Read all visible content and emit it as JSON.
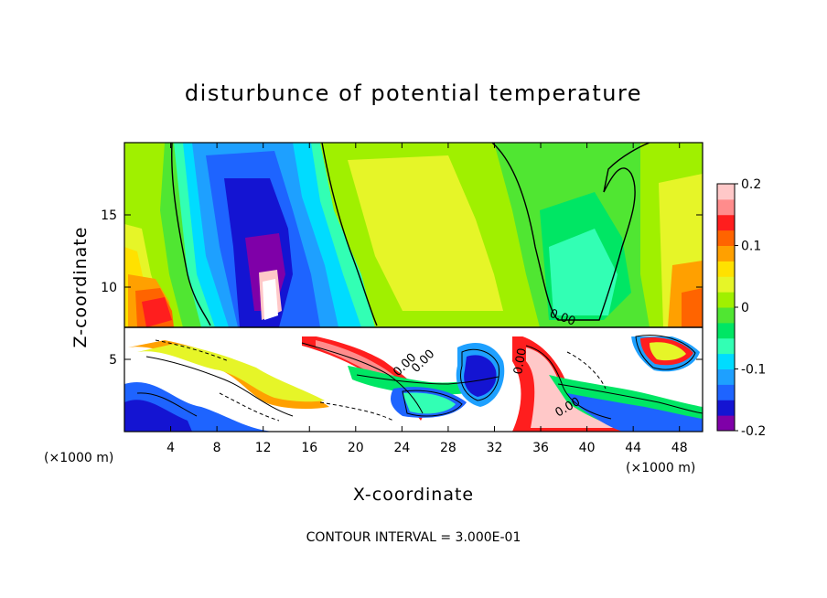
{
  "chart_data": {
    "type": "heatmap",
    "title": "disturbunce of potential temperature",
    "xlabel": "X-coordinate",
    "ylabel": "Z-coordinate",
    "x_unit_left": "(×1000 m)",
    "x_unit_right": "(×1000 m)",
    "xlim": [
      0,
      50
    ],
    "ylim": [
      0,
      20
    ],
    "xticks": [
      4,
      8,
      12,
      16,
      20,
      24,
      28,
      32,
      36,
      40,
      44,
      48
    ],
    "yticks": [
      5,
      10,
      15
    ],
    "colorbar": {
      "range": [
        -0.2,
        0.2
      ],
      "tick_labels": [
        "0.2",
        "0.1",
        "0",
        "-0.1",
        "-0.2"
      ],
      "tick_values": [
        0.2,
        0.1,
        0,
        -0.1,
        -0.2
      ],
      "colors": [
        "#7f00a8",
        "#1414d2",
        "#1e64ff",
        "#1ea0ff",
        "#00dcff",
        "#32ffb4",
        "#00e664",
        "#50e632",
        "#a0f000",
        "#e6f528",
        "#ffe100",
        "#ffa000",
        "#ff6400",
        "#ff1e1e",
        "#ff8c8c",
        "#ffc8c8"
      ]
    },
    "contour_labels": [
      "0.00",
      "0.00",
      "0.00",
      "0.00",
      "0.00"
    ],
    "footer": "CONTOUR INTERVAL = 3.000E-01",
    "grid": false
  }
}
